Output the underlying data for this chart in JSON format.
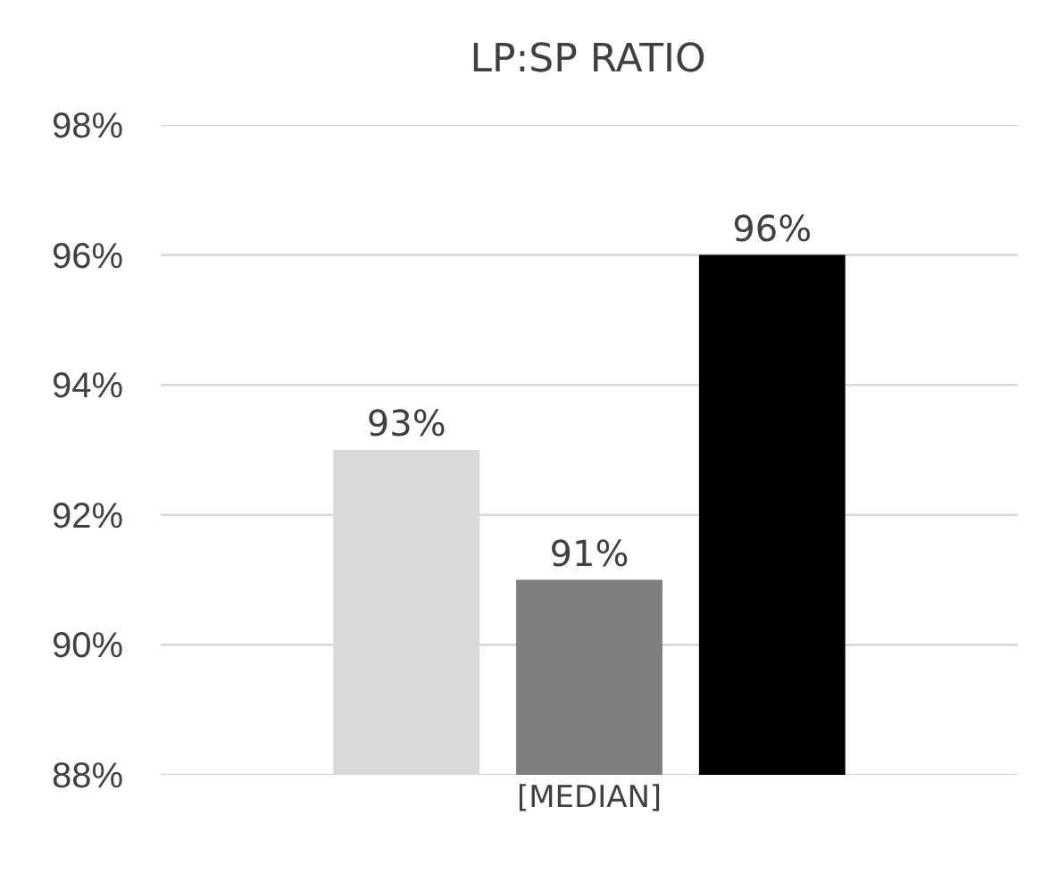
{
  "chart_data": {
    "type": "bar",
    "title": "LP:SP RATIO",
    "categories": [
      "[MEDIAN]"
    ],
    "series": [
      {
        "color": "#d9d9d9",
        "values": [
          93
        ],
        "value_labels": [
          "93%"
        ]
      },
      {
        "color": "#7f7f7f",
        "values": [
          91
        ],
        "value_labels": [
          "91%"
        ]
      },
      {
        "color": "#000000",
        "values": [
          96
        ],
        "value_labels": [
          "96%"
        ]
      }
    ],
    "ylim": [
      88,
      98
    ],
    "yticks": [
      {
        "value": 88,
        "label": "88%"
      },
      {
        "value": 90,
        "label": "90%"
      },
      {
        "value": 92,
        "label": "92%"
      },
      {
        "value": 94,
        "label": "94%"
      },
      {
        "value": 96,
        "label": "96%"
      },
      {
        "value": 98,
        "label": "98%"
      }
    ],
    "grid": "y"
  }
}
